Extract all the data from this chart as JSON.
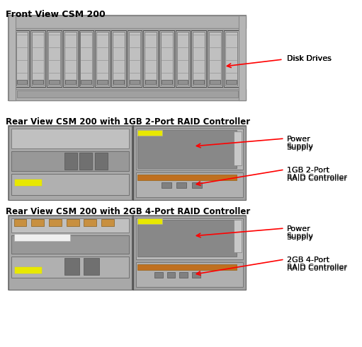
{
  "background_color": "#ffffff",
  "title_front": "Front View CSM 200",
  "title_rear1": "Rear View CSM 200 with 1GB 2-Port RAID Controller",
  "title_rear2": "Rear View CSM 200 with 2GB 4-Port RAID Controller",
  "label_disk": "Disk Drives",
  "label_power1": "Power\nSupply",
  "label_controller1": "1GB 2-Port\nRAID Controller",
  "label_power2": "Power\nSupply",
  "label_controller2": "2GB 4-Port\nRAID Controller",
  "fig_width": 5.11,
  "fig_height": 4.91,
  "dpi": 100
}
